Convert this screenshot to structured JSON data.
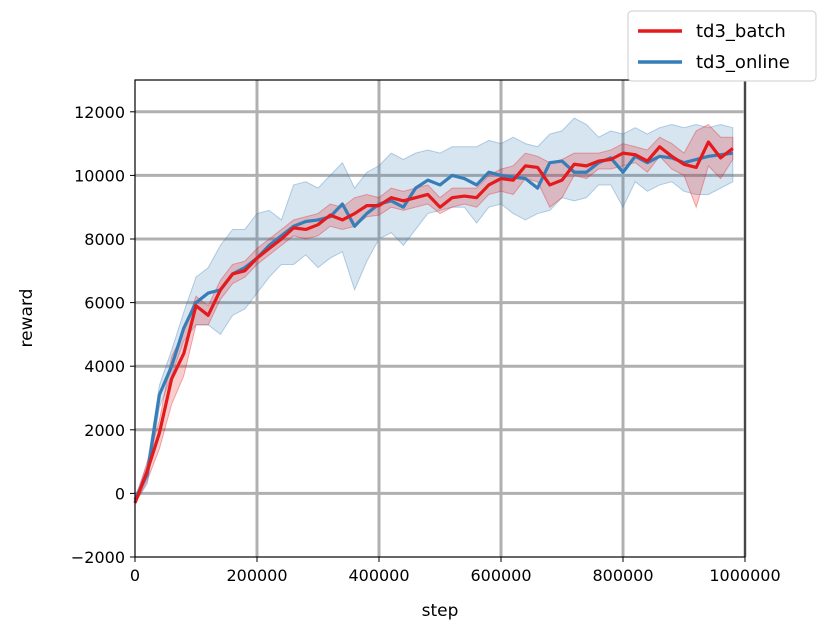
{
  "chart_data": {
    "type": "line",
    "xlabel": "step",
    "ylabel": "reward",
    "xlim": [
      0,
      1000000
    ],
    "ylim": [
      -2000,
      13000
    ],
    "x_ticks": [
      0,
      200000,
      400000,
      600000,
      800000,
      1000000
    ],
    "x_tick_labels": [
      "0",
      "200000",
      "400000",
      "600000",
      "800000",
      "1000000"
    ],
    "y_ticks": [
      -2000,
      0,
      2000,
      4000,
      6000,
      8000,
      10000,
      12000
    ],
    "y_tick_labels": [
      "−2000",
      "0",
      "2000",
      "4000",
      "6000",
      "8000",
      "10000",
      "12000"
    ],
    "grid": true,
    "legend_position": "top-right",
    "x": [
      0,
      20000,
      40000,
      60000,
      80000,
      100000,
      120000,
      140000,
      160000,
      180000,
      200000,
      220000,
      240000,
      260000,
      280000,
      300000,
      320000,
      340000,
      360000,
      380000,
      400000,
      420000,
      440000,
      460000,
      480000,
      500000,
      520000,
      540000,
      560000,
      580000,
      600000,
      620000,
      640000,
      660000,
      680000,
      700000,
      720000,
      740000,
      760000,
      780000,
      800000,
      820000,
      840000,
      860000,
      880000,
      900000,
      920000,
      940000,
      960000,
      980000
    ],
    "series": [
      {
        "name": "td3_online",
        "color": "#377eb8",
        "values": [
          -200,
          600,
          3100,
          4000,
          5200,
          6000,
          6300,
          6400,
          6900,
          7100,
          7400,
          7800,
          8100,
          8400,
          8550,
          8600,
          8700,
          9100,
          8400,
          8800,
          9100,
          9200,
          9000,
          9600,
          9850,
          9700,
          10000,
          9900,
          9700,
          10100,
          10000,
          9950,
          9900,
          9600,
          10400,
          10450,
          10100,
          10100,
          10400,
          10550,
          10100,
          10600,
          10400,
          10600,
          10550,
          10400,
          10500,
          10600,
          10650,
          10700
        ],
        "lower": [
          -300,
          300,
          2700,
          3700,
          4800,
          5300,
          5300,
          5000,
          5600,
          5800,
          6300,
          6800,
          7200,
          7200,
          7500,
          7100,
          7400,
          7600,
          6400,
          7300,
          8000,
          8200,
          7800,
          8300,
          8800,
          8900,
          9000,
          9000,
          8500,
          9000,
          9100,
          8800,
          8600,
          8800,
          8900,
          9300,
          9200,
          9300,
          9700,
          9700,
          9000,
          9800,
          9500,
          9700,
          9800,
          9500,
          9400,
          9400,
          9600,
          9800
        ],
        "upper": [
          -100,
          900,
          3400,
          4500,
          5700,
          6800,
          7100,
          7800,
          8300,
          8300,
          8800,
          8900,
          8600,
          9700,
          9800,
          9600,
          10000,
          10400,
          9600,
          10100,
          10300,
          10700,
          10500,
          10700,
          10800,
          10700,
          10900,
          10900,
          10900,
          11100,
          11000,
          11200,
          11000,
          10900,
          11300,
          11400,
          11800,
          11600,
          11200,
          11400,
          11300,
          11500,
          11300,
          11500,
          11600,
          11500,
          11600,
          11500,
          11600,
          11500
        ]
      },
      {
        "name": "td3_batch",
        "color": "#e41a1c",
        "values": [
          -300,
          700,
          1900,
          3600,
          4400,
          5900,
          5600,
          6400,
          6900,
          7000,
          7400,
          7700,
          8000,
          8350,
          8300,
          8450,
          8750,
          8600,
          8800,
          9050,
          9050,
          9300,
          9200,
          9300,
          9400,
          9000,
          9300,
          9350,
          9300,
          9700,
          9900,
          9850,
          10300,
          10250,
          9700,
          9850,
          10350,
          10300,
          10450,
          10500,
          10700,
          10650,
          10450,
          10900,
          10600,
          10350,
          10250,
          11050,
          10550,
          10850
        ],
        "lower": [
          -350,
          400,
          1400,
          2800,
          3700,
          5300,
          5300,
          6100,
          6600,
          6800,
          7200,
          7500,
          7800,
          8100,
          8000,
          8100,
          8400,
          8300,
          8400,
          8700,
          8750,
          9000,
          8900,
          9000,
          9100,
          8800,
          9000,
          9100,
          9000,
          9400,
          9500,
          9400,
          9900,
          9800,
          9000,
          9300,
          10000,
          9900,
          10200,
          10200,
          10300,
          10400,
          10100,
          10600,
          10200,
          10000,
          9000,
          10300,
          9900,
          10500
        ],
        "upper": [
          -250,
          1000,
          2300,
          4300,
          5100,
          6200,
          5900,
          6700,
          7200,
          7300,
          7700,
          8000,
          8300,
          8600,
          8700,
          8800,
          9100,
          9000,
          9300,
          9400,
          9300,
          9600,
          9500,
          9600,
          9700,
          9300,
          9600,
          9600,
          9600,
          10000,
          10200,
          10300,
          10700,
          10600,
          10400,
          10500,
          10700,
          10700,
          10700,
          10800,
          11000,
          10900,
          10800,
          11200,
          11000,
          10700,
          11400,
          11600,
          11200,
          11200
        ]
      }
    ]
  }
}
